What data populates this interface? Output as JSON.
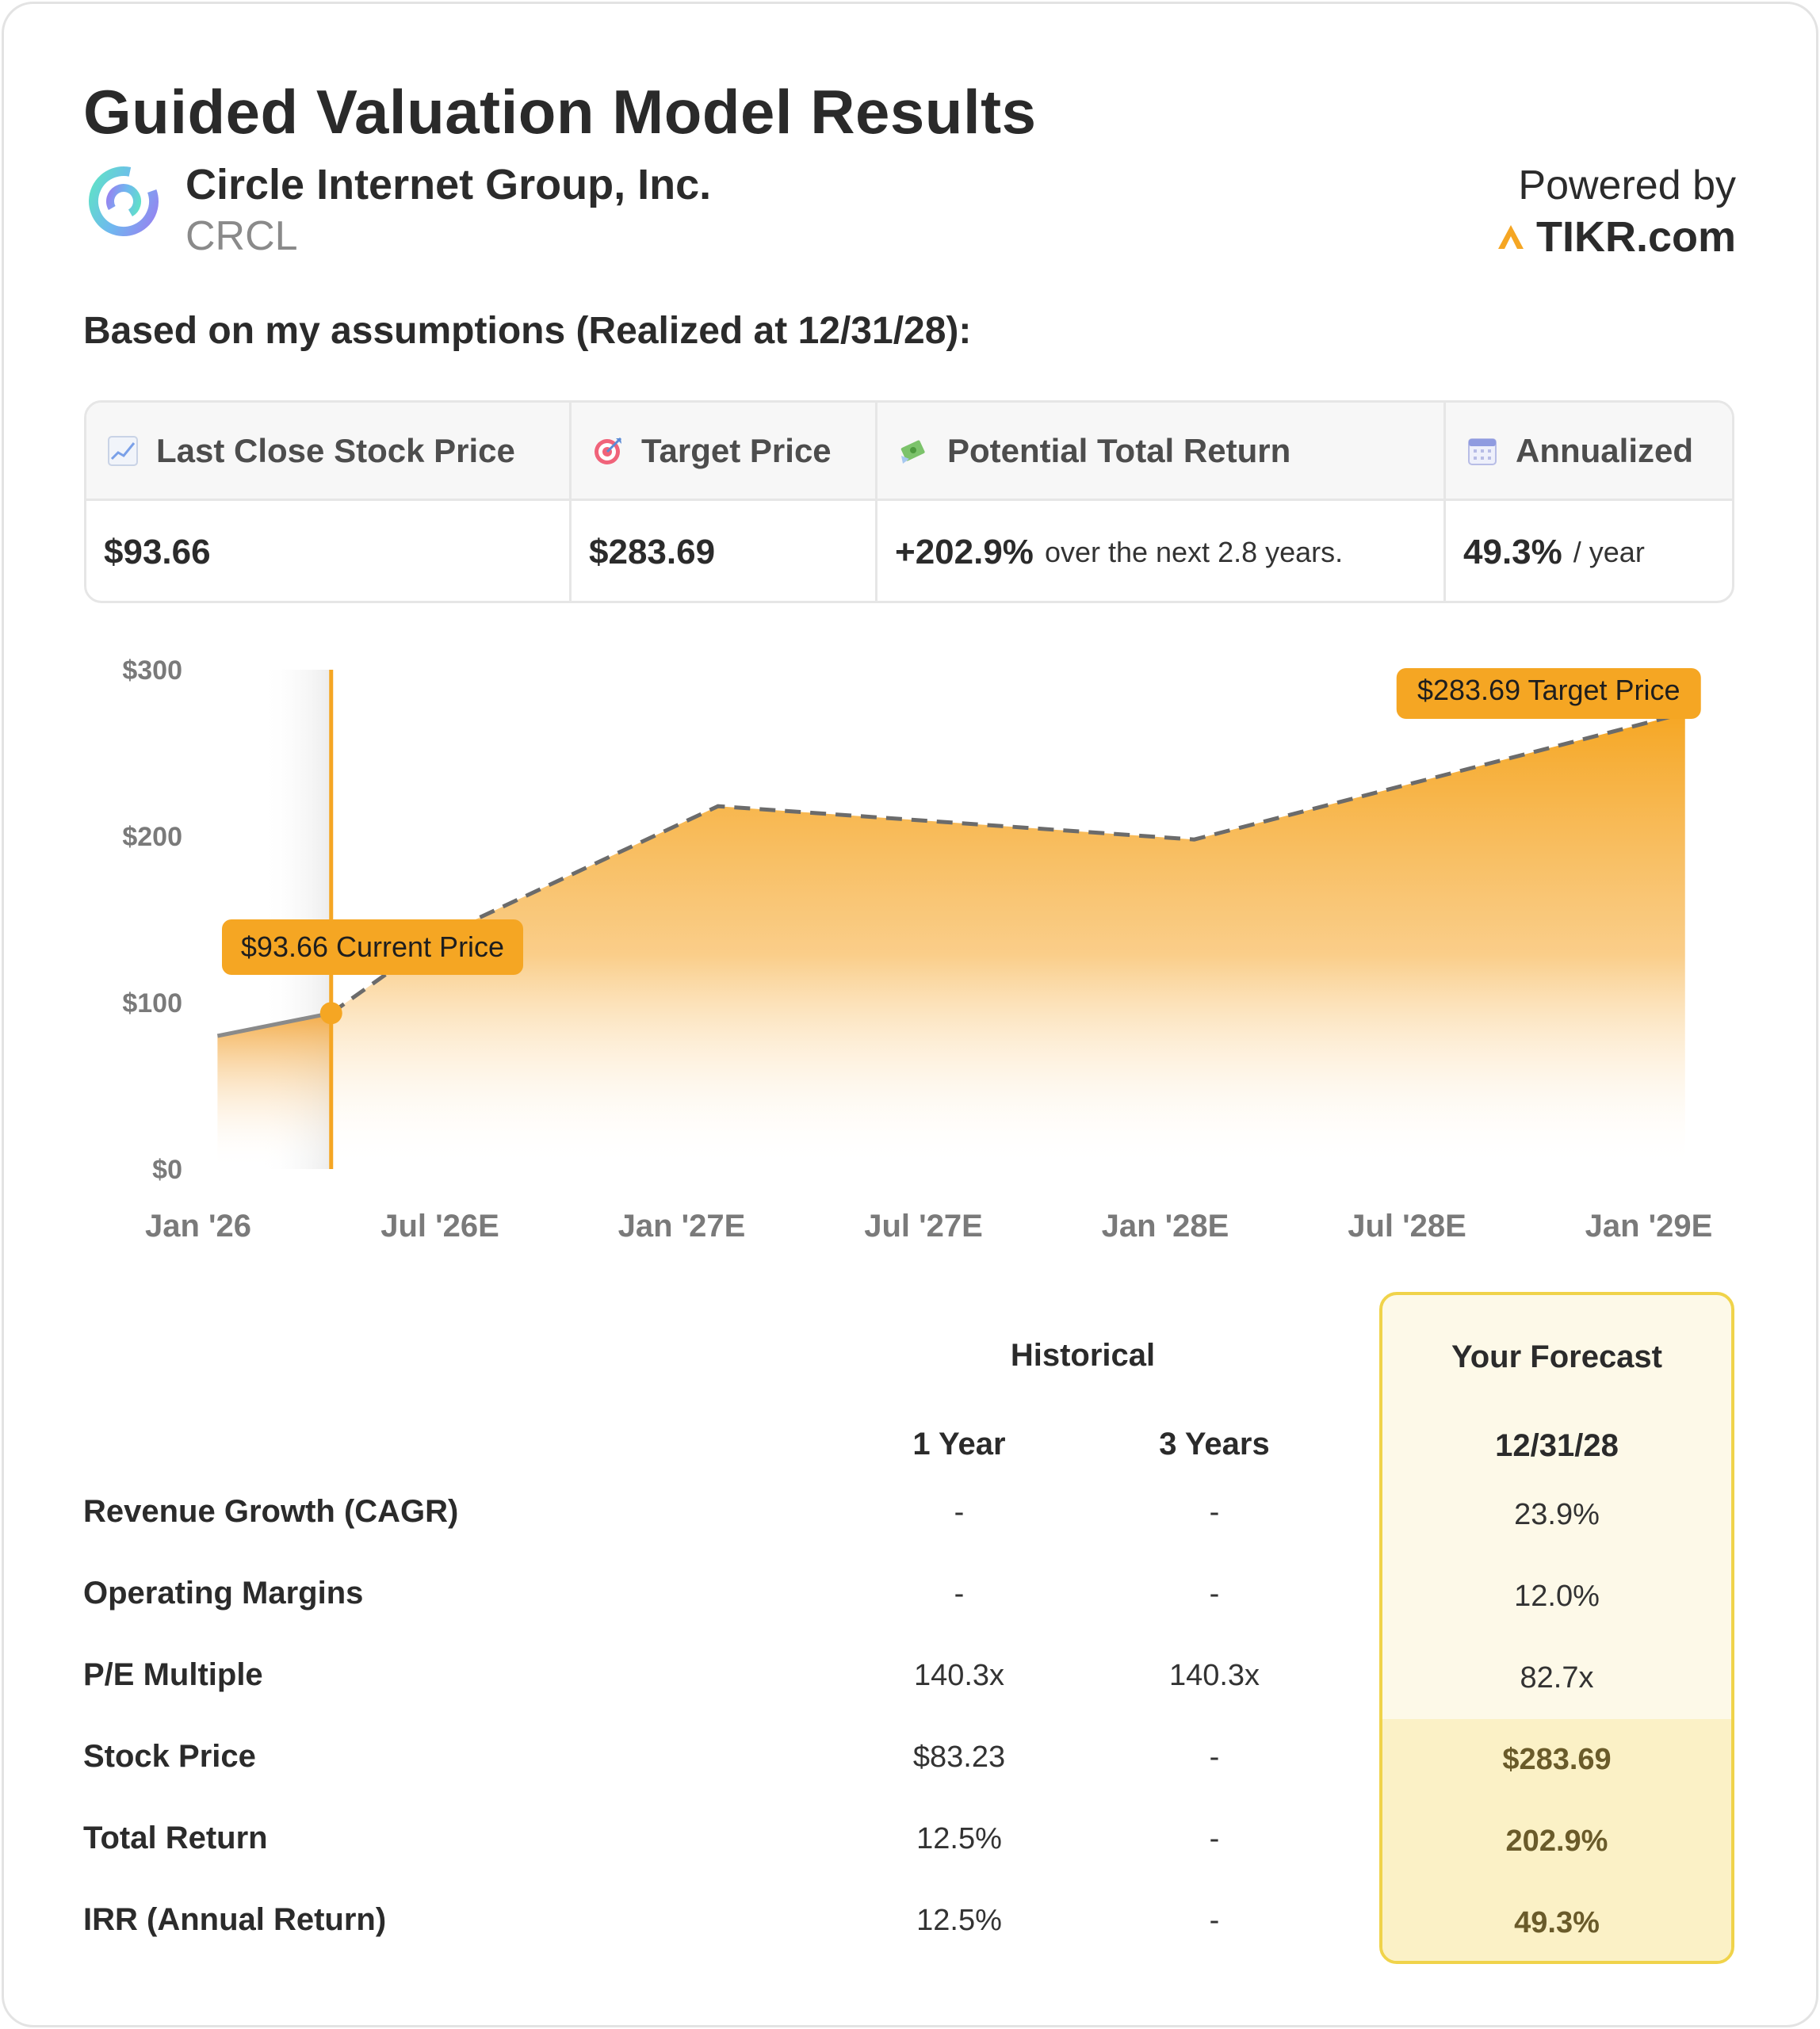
{
  "title": "Guided Valuation Model Results",
  "company": {
    "name": "Circle Internet Group, Inc.",
    "ticker": "CRCL"
  },
  "powered": {
    "label": "Powered by",
    "brand": "TIKR.com"
  },
  "assumption": "Based on my assumptions (Realized at 12/31/28):",
  "summary": {
    "last_close_label": "Last Close Stock Price",
    "last_close_value": "$93.66",
    "target_label": "Target Price",
    "target_value": "$283.69",
    "return_label": "Potential Total Return",
    "return_value": "+202.9%",
    "return_sub": "over the next 2.8 years.",
    "annual_label": "Annualized",
    "annual_value": "49.3%",
    "annual_sub": "/ year"
  },
  "chart_data": {
    "type": "area",
    "y_ticks": [
      "$0",
      "$100",
      "$200",
      "$300"
    ],
    "ylim": [
      0,
      300
    ],
    "x_ticks": [
      "Jan '26",
      "Jul '26E",
      "Jan '27E",
      "Jul '27E",
      "Jan '28E",
      "Jul '28E",
      "Jan '29E"
    ],
    "historical": [
      {
        "t": 0.08,
        "y": 80
      },
      {
        "t": 0.55,
        "y": 93.66
      }
    ],
    "forecast": [
      {
        "t": 0.55,
        "y": 93.66
      },
      {
        "t": 1.0,
        "y": 140
      },
      {
        "t": 2.15,
        "y": 218
      },
      {
        "t": 4.12,
        "y": 198
      },
      {
        "t": 6.15,
        "y": 274
      }
    ],
    "current_label": "$93.66 Current Price",
    "target_label": "$283.69 Target Price",
    "colors": {
      "area": "#f5a31a",
      "line": "#6b6b6b",
      "marker": "#f5a623"
    }
  },
  "table": {
    "historical_label": "Historical",
    "forecast_label": "Your Forecast",
    "col_1y": "1 Year",
    "col_3y": "3 Years",
    "col_forecast": "12/31/28",
    "rows": [
      {
        "label": "Revenue Growth (CAGR)",
        "y1": "-",
        "y3": "-",
        "f": "23.9%"
      },
      {
        "label": "Operating Margins",
        "y1": "-",
        "y3": "-",
        "f": "12.0%"
      },
      {
        "label": "P/E Multiple",
        "y1": "140.3x",
        "y3": "140.3x",
        "f": "82.7x"
      },
      {
        "label": "Stock Price",
        "y1": "$83.23",
        "y3": "-",
        "f": "$283.69"
      },
      {
        "label": "Total Return",
        "y1": "12.5%",
        "y3": "-",
        "f": "202.9%"
      },
      {
        "label": "IRR (Annual Return)",
        "y1": "12.5%",
        "y3": "-",
        "f": "49.3%"
      }
    ]
  }
}
